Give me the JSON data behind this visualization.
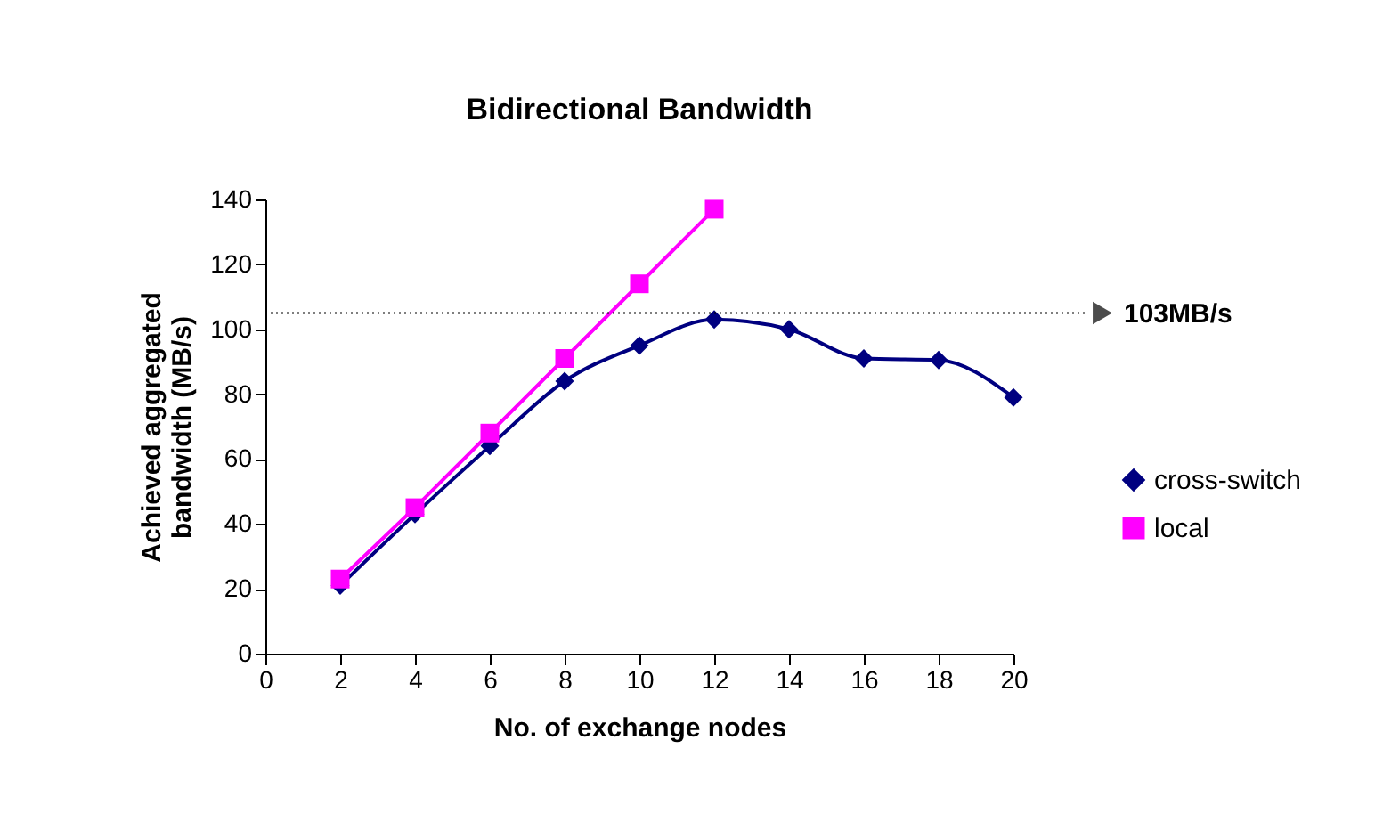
{
  "chart_data": {
    "type": "line",
    "title": "Bidirectional Bandwidth",
    "xlabel": "No. of exchange nodes",
    "ylabel": "Achieved aggregated bandwidth (MB/s)",
    "x": [
      2,
      4,
      6,
      8,
      10,
      12,
      14,
      16,
      18,
      20
    ],
    "series": [
      {
        "name": "cross-switch",
        "color": "#000080",
        "marker": "diamond",
        "values": [
          21,
          43,
          64,
          84,
          95,
          103,
          100,
          91,
          90.5,
          79
        ]
      },
      {
        "name": "local",
        "color": "#ff00ff",
        "marker": "square",
        "x": [
          2,
          4,
          6,
          8,
          10,
          12
        ],
        "values": [
          23,
          45,
          68,
          91,
          114,
          137
        ]
      }
    ],
    "xlim": [
      0,
      20
    ],
    "xticks": [
      0,
      2,
      4,
      6,
      8,
      10,
      12,
      14,
      16,
      18,
      20
    ],
    "ylim": [
      0,
      140
    ],
    "yticks": [
      0,
      20,
      40,
      60,
      80,
      100,
      120,
      140
    ],
    "grid": false,
    "legend": "right",
    "ref_lines": [
      {
        "axis": "y",
        "value": 105,
        "label": "103MB/s",
        "color": "#000000",
        "line_style": "dotted"
      }
    ]
  }
}
